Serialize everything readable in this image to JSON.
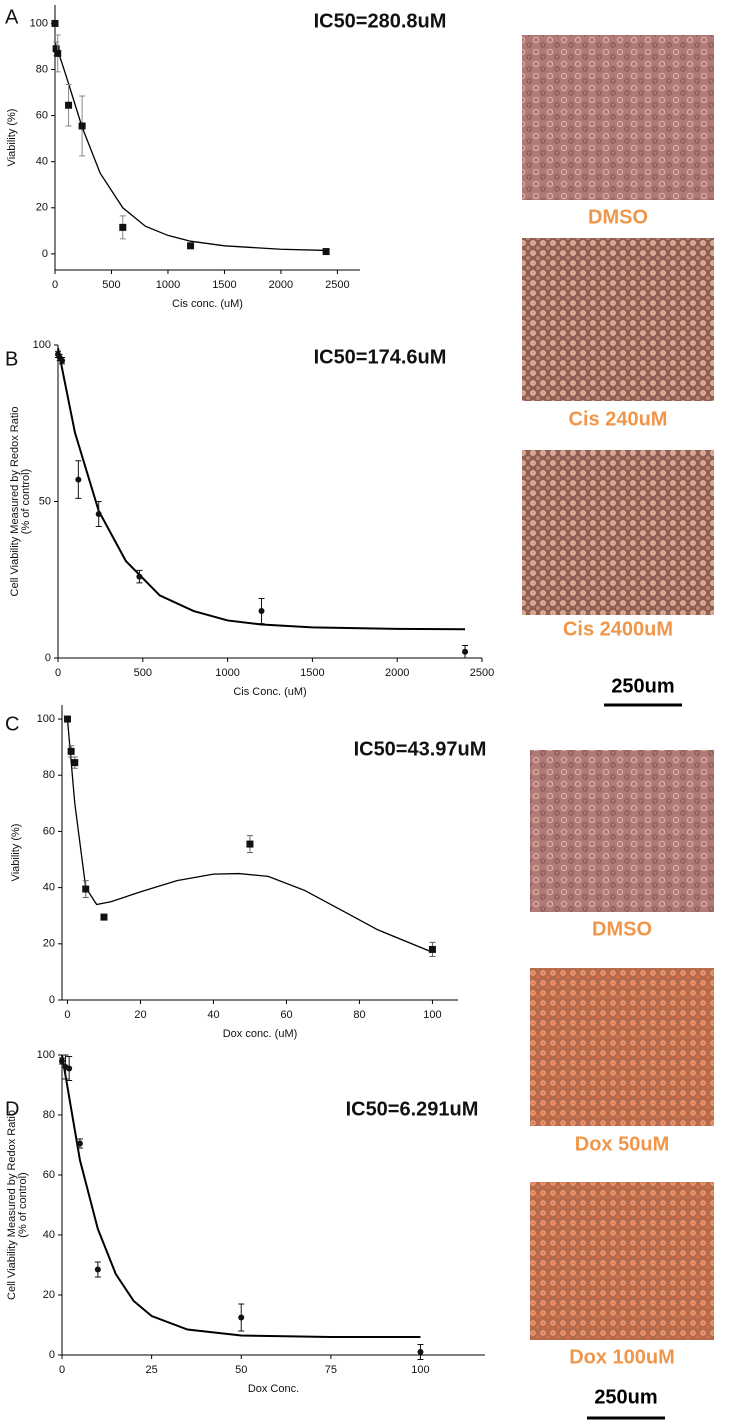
{
  "chart_data": [
    {
      "type": "scatter",
      "label": "A",
      "annotation": "IC50=280.8uM",
      "xlabel": "Cis conc. (uM)",
      "ylabel": "Viability (%)",
      "x": [
        0,
        10,
        24,
        120,
        240,
        600,
        1200,
        2400
      ],
      "values": [
        100,
        89,
        87,
        64.5,
        55.5,
        11.5,
        3.5,
        1
      ],
      "errors": [
        0,
        3,
        8,
        9,
        13,
        5,
        1,
        0.5
      ],
      "marker": "square",
      "color": "#111111",
      "error_color": "#888888",
      "curve": {
        "x": [
          0,
          100,
          240,
          400,
          600,
          800,
          1000,
          1200,
          1500,
          2000,
          2400
        ],
        "values": [
          92,
          77,
          55,
          35,
          20,
          12,
          8,
          5.5,
          3.5,
          2,
          1.5
        ]
      },
      "xlim": [
        0,
        2700
      ],
      "ylim": [
        -7,
        108
      ],
      "xticks": [
        0,
        500,
        1000,
        1500,
        2000,
        2500
      ],
      "yticks": [
        0,
        20,
        40,
        60,
        80,
        100
      ]
    },
    {
      "type": "scatter",
      "label": "B",
      "annotation": "IC50=174.6uM",
      "xlabel": "Cis Conc. (uM)",
      "ylabel": "Cell Viability Measured by Redox Ratio",
      "ylabel2": "(% of control)",
      "x": [
        0,
        10,
        24,
        120,
        240,
        480,
        1200,
        2400
      ],
      "values": [
        97,
        96,
        95,
        57,
        46,
        26,
        15,
        2
      ],
      "errors": [
        1,
        1,
        1,
        6,
        4,
        2,
        4,
        2
      ],
      "marker": "circle",
      "color": "#111111",
      "error_color": "#111111",
      "curve": {
        "x": [
          0,
          100,
          240,
          400,
          600,
          800,
          1000,
          1200,
          1500,
          2000,
          2400
        ],
        "values": [
          99,
          72,
          47,
          31,
          20,
          15,
          12,
          10.7,
          9.8,
          9.3,
          9.2
        ]
      },
      "xlim": [
        0,
        2500
      ],
      "ylim": [
        0,
        100
      ],
      "xticks": [
        0,
        500,
        1000,
        1500,
        2000,
        2500
      ],
      "yticks": [
        0,
        50,
        100
      ]
    },
    {
      "type": "scatter",
      "label": "C",
      "annotation": "IC50=43.97uM",
      "xlabel": "Dox conc. (uM)",
      "ylabel": "Viability (%)",
      "x": [
        0,
        1,
        2,
        5,
        10,
        50,
        100
      ],
      "values": [
        100,
        88.5,
        84.5,
        39.5,
        29.5,
        55.5,
        18
      ],
      "errors": [
        0,
        2,
        2,
        3,
        1,
        3,
        2.5
      ],
      "marker": "square",
      "color": "#111111",
      "error_color": "#666666",
      "curve": {
        "x": [
          0,
          2,
          5,
          8,
          12,
          20,
          30,
          40,
          47,
          55,
          65,
          75,
          85,
          100
        ],
        "values": [
          100,
          70,
          40,
          34,
          35,
          38.5,
          42.5,
          44.8,
          45,
          44,
          39,
          32,
          25,
          17
        ]
      },
      "xlim": [
        -1.5,
        107
      ],
      "ylim": [
        0,
        105
      ],
      "xticks": [
        0,
        20,
        40,
        60,
        80,
        100
      ],
      "yticks": [
        0,
        20,
        40,
        60,
        80,
        100
      ]
    },
    {
      "type": "scatter",
      "label": "D",
      "annotation": "IC50=6.291uM",
      "xlabel": "Dox Conc.",
      "ylabel": "Cell Viability Measured by Redox Ratio",
      "ylabel2": "(% of control)",
      "x": [
        0,
        1,
        2,
        5,
        10,
        50,
        100
      ],
      "values": [
        98,
        96,
        95.5,
        70.5,
        28.5,
        12.5,
        1
      ],
      "errors": [
        1,
        4,
        4,
        1.5,
        2.5,
        4.5,
        2.5
      ],
      "marker": "circle",
      "color": "#111111",
      "error_color": "#111111",
      "curve": {
        "x": [
          0,
          5,
          10,
          15,
          20,
          25,
          35,
          50,
          75,
          100
        ],
        "values": [
          100,
          65,
          42,
          27,
          18,
          13,
          8.5,
          6.5,
          6,
          6
        ]
      },
      "xlim": [
        0,
        118
      ],
      "ylim": [
        0,
        100
      ],
      "xticks": [
        0,
        25,
        50,
        75,
        100
      ],
      "yticks": [
        0,
        20,
        40,
        60,
        80,
        100
      ]
    }
  ],
  "images": [
    {
      "label": "DMSO"
    },
    {
      "label": "Cis 240uM"
    },
    {
      "label": "Cis 2400uM"
    },
    {
      "label": "DMSO"
    },
    {
      "label": "Dox 50uM"
    },
    {
      "label": "Dox 100uM"
    }
  ],
  "scale_bars": [
    "250um",
    "250um"
  ]
}
